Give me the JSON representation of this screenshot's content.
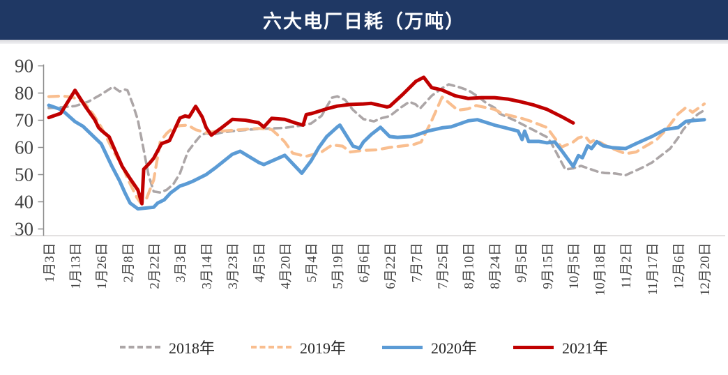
{
  "header": {
    "title": "六大电厂日耗（万吨）"
  },
  "chart_data": {
    "type": "line",
    "title": "六大电厂日耗（万吨）",
    "xlabel": "",
    "ylabel": "",
    "ylim": [
      30,
      90
    ],
    "yticks": [
      30,
      40,
      50,
      60,
      70,
      80,
      90
    ],
    "grid": false,
    "legend_position": "bottom",
    "categories": [
      "1月3日",
      "1月13日",
      "1月26日",
      "2月8日",
      "2月22日",
      "3月3日",
      "3月14日",
      "3月23日",
      "4月5日",
      "4月20日",
      "5月4日",
      "5月19日",
      "6月6日",
      "6月22日",
      "7月7日",
      "7月25日",
      "8月10日",
      "8月24日",
      "9月5日",
      "9月15日",
      "10月5日",
      "10月18日",
      "11月2日",
      "11月17日",
      "12月6日",
      "12月20日"
    ],
    "series": [
      {
        "name": "2018年",
        "color": "#ACA6A7",
        "style": "dashed",
        "stroke_width": 3.6,
        "dash": "10 7",
        "points": [
          [
            0,
            74.5
          ],
          [
            0.5,
            74.8
          ],
          [
            1,
            75.2
          ],
          [
            1.5,
            76.8
          ],
          [
            2,
            79.5
          ],
          [
            2.45,
            82.3
          ],
          [
            2.7,
            80.6
          ],
          [
            2.9,
            81.3
          ],
          [
            3,
            81
          ],
          [
            3.2,
            76
          ],
          [
            3.4,
            70
          ],
          [
            3.6,
            60
          ],
          [
            3.8,
            50
          ],
          [
            4,
            43.8
          ],
          [
            4.25,
            43.4
          ],
          [
            4.5,
            44.4
          ],
          [
            4.75,
            46.5
          ],
          [
            5,
            50.4
          ],
          [
            5.3,
            58.4
          ],
          [
            5.6,
            62.2
          ],
          [
            5.8,
            64.5
          ],
          [
            6,
            65.2
          ],
          [
            6.3,
            64.8
          ],
          [
            6.6,
            65.5
          ],
          [
            7,
            66
          ],
          [
            7.7,
            66.6
          ],
          [
            8,
            66.8
          ],
          [
            8.5,
            67
          ],
          [
            9,
            67.2
          ],
          [
            9.6,
            68
          ],
          [
            10,
            68.8
          ],
          [
            10.4,
            71.6
          ],
          [
            10.8,
            78.3
          ],
          [
            11,
            78.8
          ],
          [
            11.3,
            77.5
          ],
          [
            11.6,
            73.8
          ],
          [
            12,
            70.4
          ],
          [
            12.4,
            69.6
          ],
          [
            12.7,
            70.8
          ],
          [
            13,
            71.5
          ],
          [
            13.4,
            74.5
          ],
          [
            13.75,
            76.8
          ],
          [
            14,
            75.8
          ],
          [
            14.15,
            74.2
          ],
          [
            14.6,
            79
          ],
          [
            15,
            81.8
          ],
          [
            15.25,
            83.2
          ],
          [
            15.6,
            82.3
          ],
          [
            16,
            81
          ],
          [
            16.4,
            78.5
          ],
          [
            16.7,
            76.2
          ],
          [
            17,
            74.6
          ],
          [
            17.2,
            72.4
          ],
          [
            17.8,
            69.8
          ],
          [
            18,
            68.8
          ],
          [
            18.3,
            67.3
          ],
          [
            19,
            63.8
          ],
          [
            19.15,
            61.9
          ],
          [
            19.7,
            51.9
          ],
          [
            20,
            52.3
          ],
          [
            20.3,
            53.2
          ],
          [
            20.9,
            51.2
          ],
          [
            21,
            50.9
          ],
          [
            21.2,
            50.6
          ],
          [
            21.6,
            50.4
          ],
          [
            22,
            49.8
          ],
          [
            22.6,
            52.4
          ],
          [
            23,
            54.4
          ],
          [
            23.35,
            57
          ],
          [
            23.7,
            59.6
          ],
          [
            24,
            63.5
          ],
          [
            24.2,
            66.6
          ],
          [
            24.5,
            69.9
          ],
          [
            24.75,
            72.2
          ],
          [
            25,
            73.7
          ]
        ]
      },
      {
        "name": "2019年",
        "color": "#F9BE8F",
        "style": "dashed",
        "stroke_width": 4.2,
        "dash": "14 9",
        "points": [
          [
            0,
            78.7
          ],
          [
            0.5,
            78.9
          ],
          [
            0.9,
            78.5
          ],
          [
            1.2,
            77.2
          ],
          [
            1.4,
            75.9
          ],
          [
            1.7,
            72.1
          ],
          [
            2,
            67.4
          ],
          [
            2.25,
            62.7
          ],
          [
            2.5,
            58
          ],
          [
            2.8,
            53.3
          ],
          [
            3,
            48.6
          ],
          [
            3.2,
            44.7
          ],
          [
            3.35,
            41.7
          ],
          [
            3.5,
            39.6
          ],
          [
            3.7,
            40.5
          ],
          [
            4,
            48
          ],
          [
            4.25,
            62.2
          ],
          [
            4.5,
            65.2
          ],
          [
            4.75,
            67.3
          ],
          [
            5,
            68
          ],
          [
            5.3,
            68.2
          ],
          [
            5.6,
            66.5
          ],
          [
            6,
            65.4
          ],
          [
            6.3,
            65.8
          ],
          [
            7,
            66.3
          ],
          [
            7.4,
            66.6
          ],
          [
            8,
            67
          ],
          [
            8.5,
            66.6
          ],
          [
            8.8,
            64
          ],
          [
            9,
            62
          ],
          [
            9.3,
            57.9
          ],
          [
            9.8,
            56.7
          ],
          [
            10,
            57.2
          ],
          [
            10.4,
            58.3
          ],
          [
            10.8,
            60.9
          ],
          [
            11.2,
            60.5
          ],
          [
            11.5,
            58.3
          ],
          [
            11.8,
            58.7
          ],
          [
            12,
            58.9
          ],
          [
            12.5,
            59.1
          ],
          [
            13,
            60
          ],
          [
            13.9,
            61
          ],
          [
            14.2,
            62
          ],
          [
            14.6,
            69.8
          ],
          [
            15,
            78.5
          ],
          [
            15.6,
            73.7
          ],
          [
            16,
            74.2
          ],
          [
            16.3,
            75.4
          ],
          [
            17,
            74
          ],
          [
            17.3,
            72.4
          ],
          [
            18,
            70.8
          ],
          [
            18.4,
            69.6
          ],
          [
            19,
            67.3
          ],
          [
            19.2,
            64.7
          ],
          [
            19.55,
            60.1
          ],
          [
            20,
            62
          ],
          [
            20.2,
            63.5
          ],
          [
            20.45,
            64.2
          ],
          [
            20.65,
            61.8
          ],
          [
            20.8,
            62.7
          ],
          [
            21,
            62
          ],
          [
            21.35,
            60.1
          ],
          [
            22,
            57.7
          ],
          [
            22.4,
            58.3
          ],
          [
            22.7,
            60.1
          ],
          [
            23,
            61.8
          ],
          [
            23.2,
            63
          ],
          [
            23.55,
            66.6
          ],
          [
            24,
            72.3
          ],
          [
            24.3,
            74.7
          ],
          [
            24.55,
            72.9
          ],
          [
            25,
            76
          ]
        ]
      },
      {
        "name": "2020年",
        "color": "#5B9BD5",
        "style": "solid",
        "stroke_width": 5,
        "dash": "",
        "points": [
          [
            0,
            75.5
          ],
          [
            0.5,
            73.8
          ],
          [
            1,
            69.5
          ],
          [
            1.3,
            67.8
          ],
          [
            2,
            61.3
          ],
          [
            2.4,
            53.2
          ],
          [
            2.7,
            47.7
          ],
          [
            2.9,
            43.4
          ],
          [
            3.1,
            39.5
          ],
          [
            3.4,
            37.4
          ],
          [
            4,
            38
          ],
          [
            4.15,
            39.5
          ],
          [
            4.4,
            40.7
          ],
          [
            4.65,
            43.3
          ],
          [
            5,
            45.8
          ],
          [
            5.2,
            46.4
          ],
          [
            5.5,
            47.6
          ],
          [
            6,
            50
          ],
          [
            6.35,
            52.5
          ],
          [
            7,
            57.5
          ],
          [
            7.3,
            58.6
          ],
          [
            8,
            54.5
          ],
          [
            8.2,
            53.7
          ],
          [
            9,
            57.1
          ],
          [
            9.65,
            50.5
          ],
          [
            10,
            55
          ],
          [
            10.3,
            60
          ],
          [
            10.6,
            64
          ],
          [
            11,
            67.5
          ],
          [
            11.1,
            68.2
          ],
          [
            11.6,
            60.5
          ],
          [
            11.85,
            59.7
          ],
          [
            12,
            62
          ],
          [
            12.3,
            64.8
          ],
          [
            12.65,
            67.4
          ],
          [
            13,
            64
          ],
          [
            13.3,
            63.7
          ],
          [
            13.8,
            64
          ],
          [
            14,
            64.5
          ],
          [
            14.45,
            66
          ],
          [
            15,
            67.2
          ],
          [
            15.35,
            67.6
          ],
          [
            16,
            69.8
          ],
          [
            16.35,
            70.2
          ],
          [
            17,
            68.2
          ],
          [
            17.5,
            67
          ],
          [
            17.9,
            66
          ],
          [
            18.05,
            62.9
          ],
          [
            18.15,
            66
          ],
          [
            18.3,
            62.2
          ],
          [
            18.7,
            62.2
          ],
          [
            19,
            61.7
          ],
          [
            19.3,
            62
          ],
          [
            19.6,
            58.3
          ],
          [
            20,
            53
          ],
          [
            20.2,
            57
          ],
          [
            20.35,
            56.2
          ],
          [
            20.55,
            60.6
          ],
          [
            20.7,
            59.6
          ],
          [
            20.9,
            62.1
          ],
          [
            21.15,
            60.6
          ],
          [
            21.5,
            59.9
          ],
          [
            22,
            59.6
          ],
          [
            22.4,
            61.4
          ],
          [
            23,
            64
          ],
          [
            23.5,
            66.6
          ],
          [
            24,
            67.3
          ],
          [
            24.3,
            69.6
          ],
          [
            24.6,
            69.9
          ],
          [
            25,
            70.2
          ]
        ]
      },
      {
        "name": "2021年",
        "color": "#C00000",
        "style": "solid",
        "stroke_width": 5,
        "dash": "",
        "points": [
          [
            0,
            71
          ],
          [
            0.45,
            72.5
          ],
          [
            1,
            81
          ],
          [
            1.4,
            75
          ],
          [
            1.75,
            70.2
          ],
          [
            1.9,
            67.3
          ],
          [
            2,
            66.3
          ],
          [
            2.3,
            63.9
          ],
          [
            2.55,
            58.4
          ],
          [
            2.8,
            53
          ],
          [
            3.1,
            48.5
          ],
          [
            3.4,
            44.3
          ],
          [
            3.55,
            39.3
          ],
          [
            3.62,
            52
          ],
          [
            3.85,
            54.3
          ],
          [
            4,
            56
          ],
          [
            4.3,
            61.4
          ],
          [
            4.6,
            62.5
          ],
          [
            5,
            70.8
          ],
          [
            5.2,
            71.6
          ],
          [
            5.35,
            71.2
          ],
          [
            5.6,
            75.1
          ],
          [
            5.85,
            71.2
          ],
          [
            6,
            67.3
          ],
          [
            6.2,
            64.5
          ],
          [
            6.6,
            67.3
          ],
          [
            7,
            70.3
          ],
          [
            7.5,
            70
          ],
          [
            8,
            69.1
          ],
          [
            8.2,
            67.5
          ],
          [
            8.5,
            70.7
          ],
          [
            9,
            70.3
          ],
          [
            9.4,
            69
          ],
          [
            9.7,
            68.2
          ],
          [
            9.82,
            72.1
          ],
          [
            10,
            72.4
          ],
          [
            10.6,
            74.2
          ],
          [
            11,
            75.2
          ],
          [
            11.5,
            75.8
          ],
          [
            12,
            76
          ],
          [
            12.3,
            76.2
          ],
          [
            12.9,
            74.9
          ],
          [
            13,
            75.1
          ],
          [
            13.5,
            79.5
          ],
          [
            14,
            84.3
          ],
          [
            14.3,
            85.8
          ],
          [
            14.6,
            82
          ],
          [
            15,
            81.1
          ],
          [
            15.5,
            79
          ],
          [
            16,
            78
          ],
          [
            16.5,
            78.3
          ],
          [
            17,
            78.3
          ],
          [
            17.5,
            77.8
          ],
          [
            18,
            76.8
          ],
          [
            18.5,
            75.6
          ],
          [
            19,
            74
          ],
          [
            19.6,
            71.1
          ],
          [
            20,
            69
          ]
        ]
      }
    ]
  },
  "style": {
    "header_bg": "#1F3864",
    "axis_color": "#8C8C8C",
    "baseline_color": "#D6D3D3",
    "tick_label_color": "#3F3F3F"
  }
}
